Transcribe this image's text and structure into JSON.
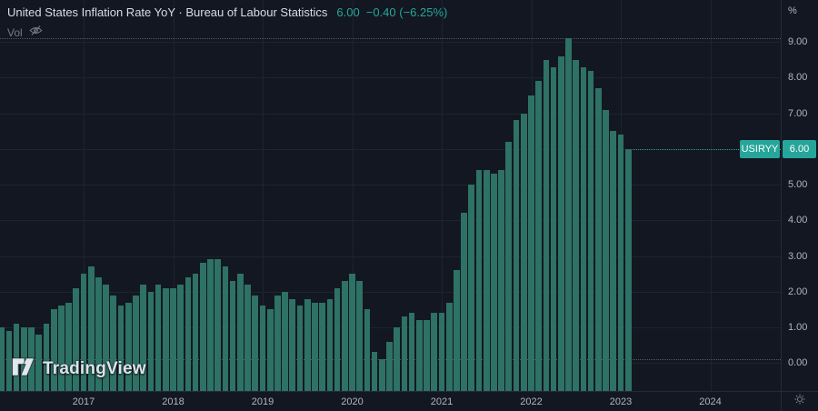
{
  "header": {
    "title": "United States Inflation Rate YoY · Bureau of Labour Statistics",
    "last_value": "6.00",
    "change": "−0.40 (−6.25%)",
    "vol_label": "Vol"
  },
  "price_axis": {
    "unit": "%",
    "ticks": [
      "9.00",
      "8.00",
      "7.00",
      "6.00",
      "5.00",
      "4.00",
      "3.00",
      "2.00",
      "1.00",
      "0.00"
    ],
    "badge": {
      "symbol": "USIRYY",
      "value": "6.00"
    }
  },
  "time_axis": {
    "ticks": [
      "2017",
      "2018",
      "2019",
      "2020",
      "2021",
      "2022",
      "2023",
      "2024"
    ]
  },
  "logo_text": "TradingView",
  "colors": {
    "background": "#131722",
    "bar": "#2e7165",
    "accent": "#26a69a",
    "grid": "#1d2330",
    "axis_text": "#b2b5be",
    "muted_text": "#787b86",
    "title_text": "#d8dce6"
  },
  "chart_data": {
    "type": "bar",
    "title": "United States Inflation Rate YoY",
    "source": "Bureau of Labour Statistics",
    "unit": "%",
    "symbol": "USIRYY",
    "x": [
      "2016-02",
      "2016-03",
      "2016-04",
      "2016-05",
      "2016-06",
      "2016-07",
      "2016-08",
      "2016-09",
      "2016-10",
      "2016-11",
      "2016-12",
      "2017-01",
      "2017-02",
      "2017-03",
      "2017-04",
      "2017-05",
      "2017-06",
      "2017-07",
      "2017-08",
      "2017-09",
      "2017-10",
      "2017-11",
      "2017-12",
      "2018-01",
      "2018-02",
      "2018-03",
      "2018-04",
      "2018-05",
      "2018-06",
      "2018-07",
      "2018-08",
      "2018-09",
      "2018-10",
      "2018-11",
      "2018-12",
      "2019-01",
      "2019-02",
      "2019-03",
      "2019-04",
      "2019-05",
      "2019-06",
      "2019-07",
      "2019-08",
      "2019-09",
      "2019-10",
      "2019-11",
      "2019-12",
      "2020-01",
      "2020-02",
      "2020-03",
      "2020-04",
      "2020-05",
      "2020-06",
      "2020-07",
      "2020-08",
      "2020-09",
      "2020-10",
      "2020-11",
      "2020-12",
      "2021-01",
      "2021-02",
      "2021-03",
      "2021-04",
      "2021-05",
      "2021-06",
      "2021-07",
      "2021-08",
      "2021-09",
      "2021-10",
      "2021-11",
      "2021-12",
      "2022-01",
      "2022-02",
      "2022-03",
      "2022-04",
      "2022-05",
      "2022-06",
      "2022-07",
      "2022-08",
      "2022-09",
      "2022-10",
      "2022-11",
      "2022-12",
      "2023-01",
      "2023-02"
    ],
    "values": [
      1.0,
      0.9,
      1.1,
      1.0,
      1.0,
      0.8,
      1.1,
      1.5,
      1.6,
      1.7,
      2.1,
      2.5,
      2.7,
      2.4,
      2.2,
      1.9,
      1.6,
      1.7,
      1.9,
      2.2,
      2.0,
      2.2,
      2.1,
      2.1,
      2.2,
      2.4,
      2.5,
      2.8,
      2.9,
      2.9,
      2.7,
      2.3,
      2.5,
      2.2,
      1.9,
      1.6,
      1.5,
      1.9,
      2.0,
      1.8,
      1.6,
      1.8,
      1.7,
      1.7,
      1.8,
      2.1,
      2.3,
      2.5,
      2.3,
      1.5,
      0.3,
      0.1,
      0.6,
      1.0,
      1.3,
      1.4,
      1.2,
      1.2,
      1.4,
      1.4,
      1.7,
      2.6,
      4.2,
      5.0,
      5.4,
      5.4,
      5.3,
      5.4,
      6.2,
      6.8,
      7.0,
      7.5,
      7.9,
      8.5,
      8.3,
      8.6,
      9.1,
      8.5,
      8.3,
      8.2,
      7.7,
      7.1,
      6.5,
      6.4,
      6.0
    ],
    "y_ticks": [
      0,
      1,
      2,
      3,
      4,
      5,
      6,
      7,
      8,
      9
    ],
    "x_year_ticks": [
      2017,
      2018,
      2019,
      2020,
      2021,
      2022,
      2023,
      2024
    ],
    "high": 9.1,
    "low": 0.1,
    "last": 6.0,
    "ylim": [
      -0.8,
      10.2
    ],
    "grid": true,
    "legend_position": "top-left"
  }
}
